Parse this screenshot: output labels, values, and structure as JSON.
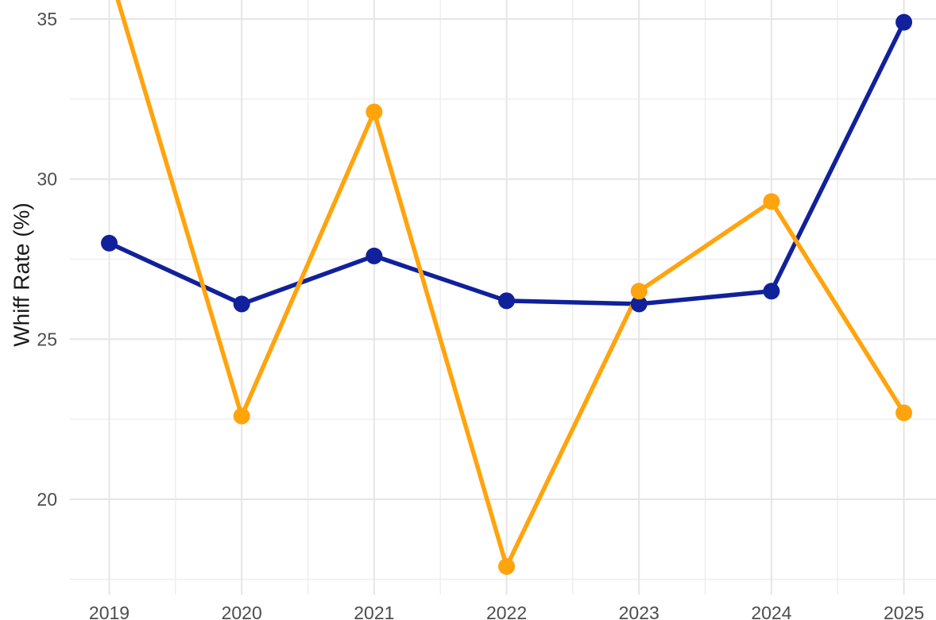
{
  "chart_data": {
    "type": "line",
    "title": "",
    "xlabel": "",
    "ylabel": "Whiff Rate (%)",
    "x": [
      2019,
      2020,
      2021,
      2022,
      2023,
      2024,
      2025
    ],
    "x_tick_labels": [
      "2019",
      "2020",
      "2021",
      "2022",
      "2023",
      "2024",
      "2025"
    ],
    "y_ticks": [
      20,
      25,
      30,
      35
    ],
    "y_tick_labels": [
      "20",
      "25",
      "30",
      "35"
    ],
    "y_minor_ticks": [
      17.5,
      22.5,
      27.5,
      32.5
    ],
    "ylim_visible": [
      17.4,
      35.6
    ],
    "grid": "on",
    "legend": "none",
    "series": [
      {
        "name": "navy-series",
        "color": "#11219B",
        "values": [
          28.0,
          26.1,
          27.6,
          26.2,
          26.1,
          26.5,
          34.9
        ]
      },
      {
        "name": "orange-series",
        "color": "#FFA40D",
        "values": [
          36.5,
          22.6,
          32.1,
          17.9,
          26.5,
          29.3,
          22.7
        ]
      }
    ],
    "colors": {
      "background": "#ffffff",
      "grid_major": "#E5E5E5",
      "grid_minor": "#EDEDED",
      "tick_text": "#4d4d4d",
      "axis_title_text": "#1a1a1a"
    }
  }
}
